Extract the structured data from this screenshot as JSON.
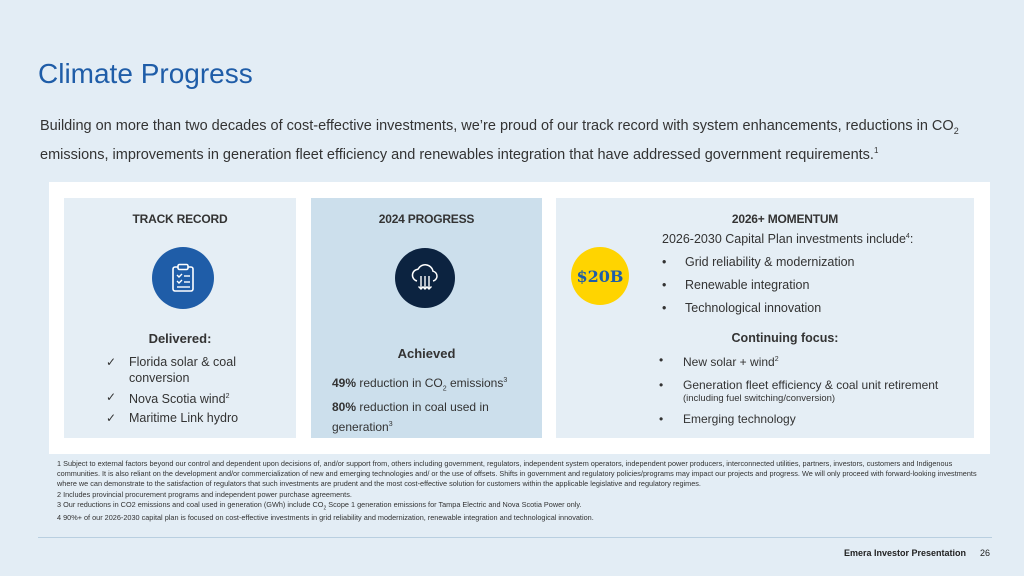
{
  "slide": {
    "title": "Climate Progress",
    "intro_part1": "Building on more than two decades of cost-effective investments, we’re proud of our track record with system enhancements, reductions in CO",
    "intro_sub": "2",
    "intro_part2": " emissions, improvements in generation fleet efficiency and renewables integration that have addressed government requirements.",
    "intro_sup": "1"
  },
  "track_record": {
    "header": "TRACK RECORD",
    "icon": "clipboard-checklist-icon",
    "subheading": "Delivered:",
    "items": [
      {
        "text": "Florida solar & coal conversion",
        "sup": ""
      },
      {
        "text": "Nova Scotia wind",
        "sup": "2"
      },
      {
        "text": "Maritime Link hydro",
        "sup": ""
      }
    ]
  },
  "progress_2024": {
    "header": "2024 PROGRESS",
    "icon": "cloud-download-icon",
    "subheading": "Achieved",
    "line1_bold": "49%",
    "line1_text_a": " reduction in CO",
    "line1_sub": "2",
    "line1_text_b": " emissions",
    "line1_sup": "3",
    "line2_bold": "80%",
    "line2_text": " reduction in coal used in generation",
    "line2_sup": "3"
  },
  "momentum": {
    "header": "2026+ MOMENTUM",
    "badge": "$20B",
    "plan_intro": "2026-2030 Capital Plan investments include",
    "plan_intro_sup": "4",
    "plan_intro_tail": ":",
    "plan_items": [
      "Grid reliability & modernization",
      "Renewable integration",
      "Technological innovation"
    ],
    "focus_heading": "Continuing focus:",
    "focus_1": "New solar + wind",
    "focus_1_sup": "2",
    "focus_2": "Generation fleet efficiency & coal unit retirement",
    "focus_2_note": "(including fuel switching/conversion)",
    "focus_3": "Emerging technology"
  },
  "footnotes": {
    "n1": "1 Subject to external factors beyond our control and dependent upon decisions of, and/or support from, others including government, regulators, independent system operators, independent power producers, interconnected utilities, partners, investors, customers and Indigenous communities. It is also reliant on the development and/or commercialization of new and emerging technologies and/ or the use of offsets. Shifts in government and regulatory policies/programs may impact our projects and progress. We will only proceed with forward-looking investments where we can demonstrate to the satisfaction of regulators that such investments are prudent and the most cost-effective solution for customers within the applicable legislative and regulatory regimes.",
    "n2": "2 Includes provincial procurement programs and independent power purchase agreements.",
    "n3_a": "3 Our reductions in CO2 emissions and coal used in generation (GWh) include CO",
    "n3_sub": "2",
    "n3_b": " Scope 1 generation emissions for Tampa Electric and Nova Scotia Power only.",
    "n4": "4 90%+ of our 2026-2030 capital plan is focused on cost-effective investments in grid reliability and modernization, renewable integration and technological innovation."
  },
  "footer": {
    "label": "Emera Investor Presentation",
    "page": "26"
  },
  "colors": {
    "title_blue": "#1f5da8",
    "navy": "#0c2340",
    "badge_yellow": "#ffd400"
  }
}
